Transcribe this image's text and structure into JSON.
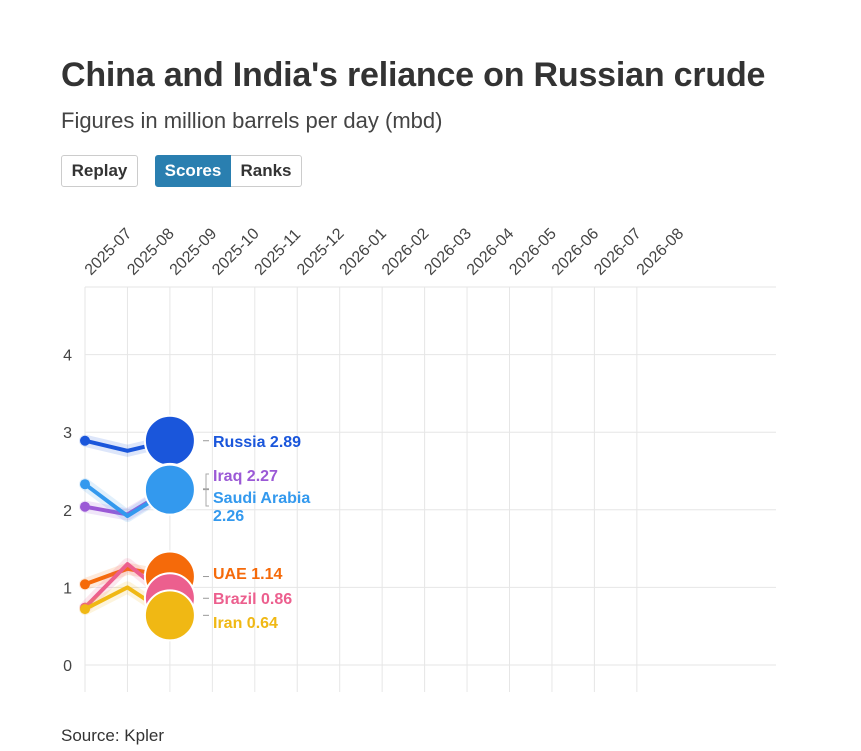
{
  "header": {
    "title": "China and India's reliance on Russian crude",
    "subtitle": "Figures in million barrels per day (mbd)"
  },
  "controls": {
    "replay_label": "Replay",
    "scores_label": "Scores",
    "ranks_label": "Ranks",
    "active": "Scores"
  },
  "footer": {
    "source": "Source: Kpler"
  },
  "chart_data": {
    "type": "line",
    "title": "China and India's reliance on Russian crude",
    "subtitle": "Figures in million barrels per day (mbd)",
    "x_ticks": [
      "2025-07",
      "2025-08",
      "2025-09",
      "2025-10",
      "2025-11",
      "2025-12",
      "2026-01",
      "2026-02",
      "2026-03",
      "2026-04",
      "2026-05",
      "2026-06",
      "2026-07",
      "2026-08"
    ],
    "y_ticks": [
      0,
      1,
      2,
      3,
      4
    ],
    "ylim": [
      -0.35,
      4.85
    ],
    "grid": true,
    "series": [
      {
        "name": "Russia",
        "color": "#1a56db",
        "x": [
          "2025-07",
          "2025-08",
          "2025-09"
        ],
        "values": [
          2.89,
          2.76,
          2.89
        ],
        "label": "Russia 2.89"
      },
      {
        "name": "Iraq",
        "color": "#9b59d6",
        "x": [
          "2025-07",
          "2025-08",
          "2025-09"
        ],
        "values": [
          2.04,
          1.94,
          2.27
        ],
        "label": "Iraq 2.27"
      },
      {
        "name": "Saudi Arabia",
        "color": "#3399ee",
        "x": [
          "2025-07",
          "2025-08",
          "2025-09"
        ],
        "values": [
          2.33,
          1.92,
          2.26
        ],
        "label_line1": "Saudi Arabia",
        "label_line2": "2.26"
      },
      {
        "name": "UAE",
        "color": "#f56a0a",
        "x": [
          "2025-07",
          "2025-08",
          "2025-09"
        ],
        "values": [
          1.04,
          1.24,
          1.14
        ],
        "label": "UAE 1.14"
      },
      {
        "name": "Brazil",
        "color": "#ec5f8e",
        "x": [
          "2025-07",
          "2025-08",
          "2025-09"
        ],
        "values": [
          0.74,
          1.3,
          0.86
        ],
        "label": "Brazil 0.86"
      },
      {
        "name": "Iran",
        "color": "#f0b814",
        "x": [
          "2025-07",
          "2025-08",
          "2025-09"
        ],
        "values": [
          0.72,
          1.0,
          0.64
        ],
        "label": "Iran 0.64"
      }
    ]
  }
}
